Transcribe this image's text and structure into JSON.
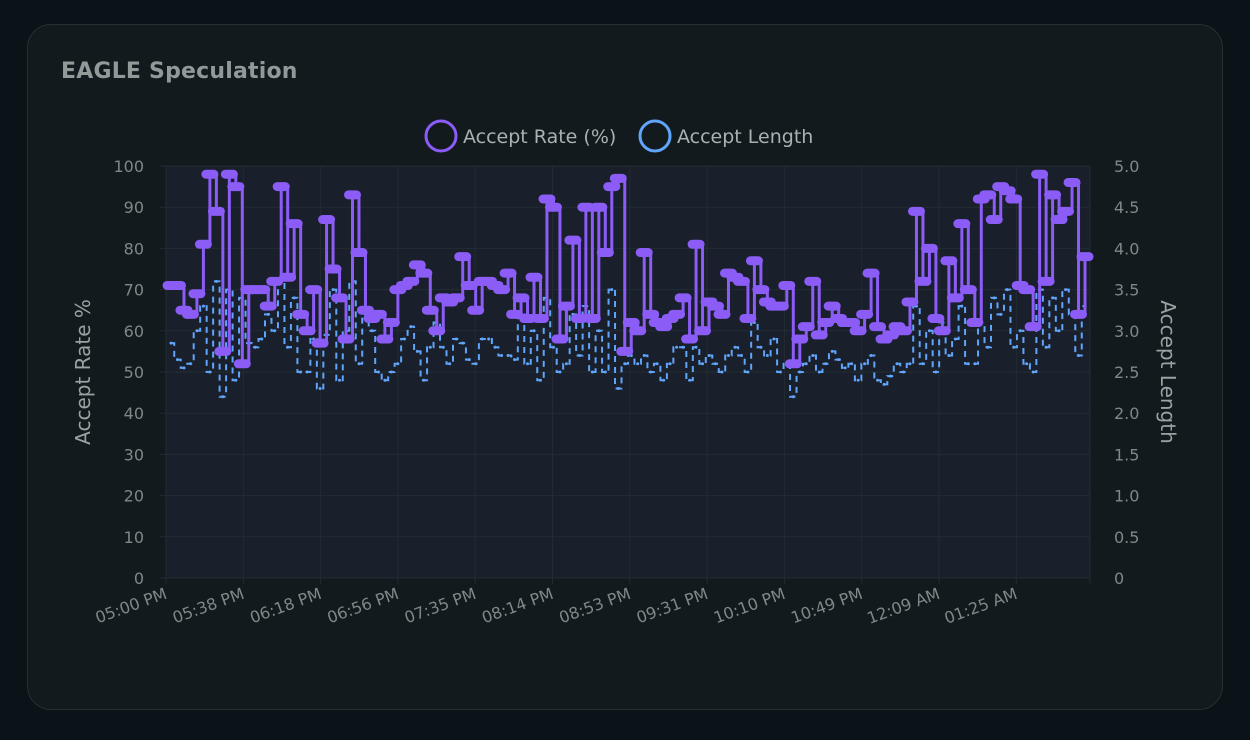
{
  "card": {
    "title": "EAGLE Speculation"
  },
  "colors": {
    "accept_rate": "#8b5cf6",
    "accept_length": "#60a5fa",
    "grid": "#222c31",
    "plot_bg": "#1a1f2c",
    "card_bg": "#121a1d"
  },
  "chart_data": {
    "type": "line",
    "title": "EAGLE Speculation",
    "legend": [
      {
        "label": "Accept Rate (%)",
        "color": "#8b5cf6"
      },
      {
        "label": "Accept Length",
        "color": "#60a5fa"
      }
    ],
    "legend_position": "top-center",
    "y_left": {
      "label": "Accept Rate %",
      "range": [
        0,
        100
      ],
      "ticks": [
        "100",
        "90",
        "80",
        "70",
        "60",
        "50",
        "40",
        "30",
        "20",
        "10",
        "0"
      ]
    },
    "y_right": {
      "label": "Accept Length",
      "range": [
        0,
        5
      ],
      "ticks": [
        "5.0",
        "4.5",
        "4.0",
        "3.5",
        "3.0",
        "2.5",
        "2.0",
        "1.5",
        "1.0",
        "0.5",
        "0"
      ]
    },
    "x_ticks": [
      "05:00 PM",
      "05:38 PM",
      "06:18 PM",
      "06:56 PM",
      "07:35 PM",
      "08:14 PM",
      "08:53 PM",
      "09:31 PM",
      "10:10 PM",
      "10:49 PM",
      "12:09 AM",
      "01:25 AM"
    ],
    "grid": true,
    "series": [
      {
        "name": "Accept Rate (%)",
        "axis": "left",
        "values": [
          71,
          71,
          65,
          64,
          69,
          81,
          98,
          89,
          55,
          98,
          95,
          52,
          70,
          70,
          70,
          66,
          72,
          95,
          73,
          86,
          64,
          60,
          70,
          57,
          87,
          75,
          68,
          58,
          93,
          79,
          65,
          63,
          64,
          58,
          62,
          70,
          71,
          72,
          76,
          74,
          65,
          60,
          68,
          67,
          68,
          78,
          71,
          65,
          72,
          72,
          71,
          70,
          74,
          64,
          68,
          63,
          73,
          63,
          92,
          90,
          58,
          66,
          82,
          63,
          90,
          63,
          90,
          79,
          95,
          97,
          55,
          62,
          60,
          79,
          64,
          62,
          61,
          63,
          64,
          68,
          58,
          81,
          60,
          67,
          66,
          64,
          74,
          73,
          72,
          63,
          77,
          70,
          67,
          66,
          66,
          71,
          52,
          58,
          61,
          72,
          59,
          62,
          66,
          63,
          62,
          62,
          60,
          64,
          74,
          61,
          58,
          59,
          61,
          60,
          67,
          89,
          72,
          80,
          63,
          60,
          77,
          68,
          86,
          70,
          62,
          92,
          93,
          87,
          95,
          94,
          92,
          71,
          70,
          61,
          98,
          72,
          93,
          87,
          89,
          96,
          64,
          78
        ]
      },
      {
        "name": "Accept Length",
        "axis": "right",
        "values": [
          2.85,
          2.65,
          2.55,
          2.6,
          3.0,
          3.3,
          2.5,
          3.6,
          2.2,
          3.5,
          2.4,
          3.4,
          2.85,
          2.8,
          2.9,
          3.2,
          3.0,
          3.6,
          2.8,
          3.4,
          2.5,
          2.5,
          2.9,
          2.3,
          2.95,
          3.5,
          2.4,
          3.0,
          3.6,
          2.6,
          3.2,
          3.0,
          2.5,
          2.4,
          2.5,
          2.6,
          2.9,
          3.05,
          2.75,
          2.4,
          2.8,
          3.1,
          2.8,
          2.6,
          2.9,
          2.85,
          2.65,
          2.6,
          2.9,
          2.9,
          2.8,
          2.7,
          2.7,
          2.65,
          3.2,
          2.6,
          3.0,
          2.4,
          3.4,
          2.8,
          2.5,
          2.6,
          3.2,
          2.7,
          3.3,
          2.5,
          3.0,
          2.5,
          3.5,
          2.3,
          2.6,
          2.7,
          2.6,
          2.7,
          2.5,
          2.6,
          2.4,
          2.6,
          2.8,
          2.8,
          2.4,
          2.8,
          2.6,
          2.7,
          2.6,
          2.5,
          2.7,
          2.8,
          2.7,
          2.5,
          3.1,
          2.8,
          2.7,
          2.9,
          2.5,
          2.6,
          2.2,
          2.5,
          2.6,
          2.7,
          2.5,
          2.6,
          2.75,
          2.65,
          2.55,
          2.6,
          2.4,
          2.6,
          2.7,
          2.4,
          2.35,
          2.45,
          2.6,
          2.5,
          2.6,
          3.3,
          2.6,
          3.0,
          2.5,
          3.1,
          2.7,
          2.9,
          3.3,
          2.6,
          2.6,
          3.1,
          2.8,
          3.4,
          3.2,
          3.5,
          2.8,
          3.0,
          2.6,
          2.5,
          3.5,
          2.8,
          3.4,
          3.0,
          3.5,
          3.2,
          2.7,
          3.3
        ]
      }
    ]
  }
}
